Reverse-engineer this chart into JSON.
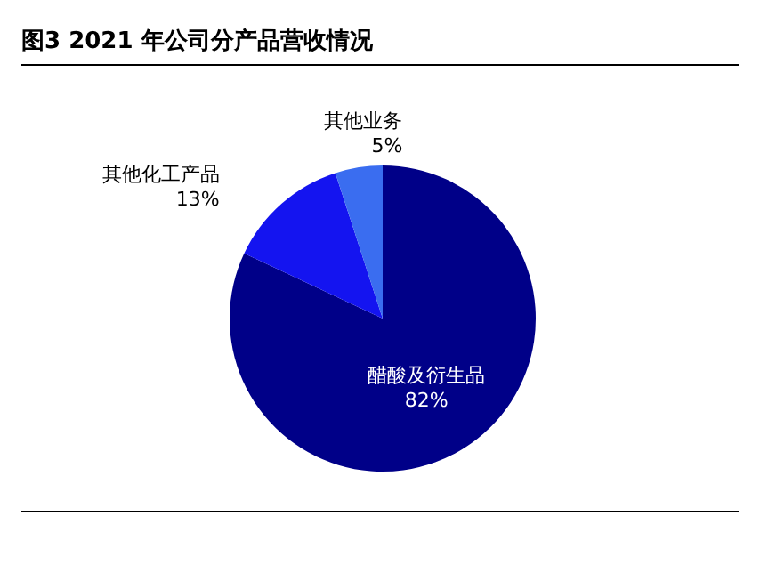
{
  "chart_data": {
    "type": "pie",
    "title": "图3   2021 年公司分产品营收情况",
    "categories": [
      "醋酸及衍生品",
      "其他化工产品",
      "其他业务"
    ],
    "values": [
      82,
      13,
      5
    ],
    "colors": [
      "#000088",
      "#1414f0",
      "#3a6df0"
    ],
    "value_labels": [
      "82%",
      "13%",
      "5%"
    ],
    "legend": false
  }
}
